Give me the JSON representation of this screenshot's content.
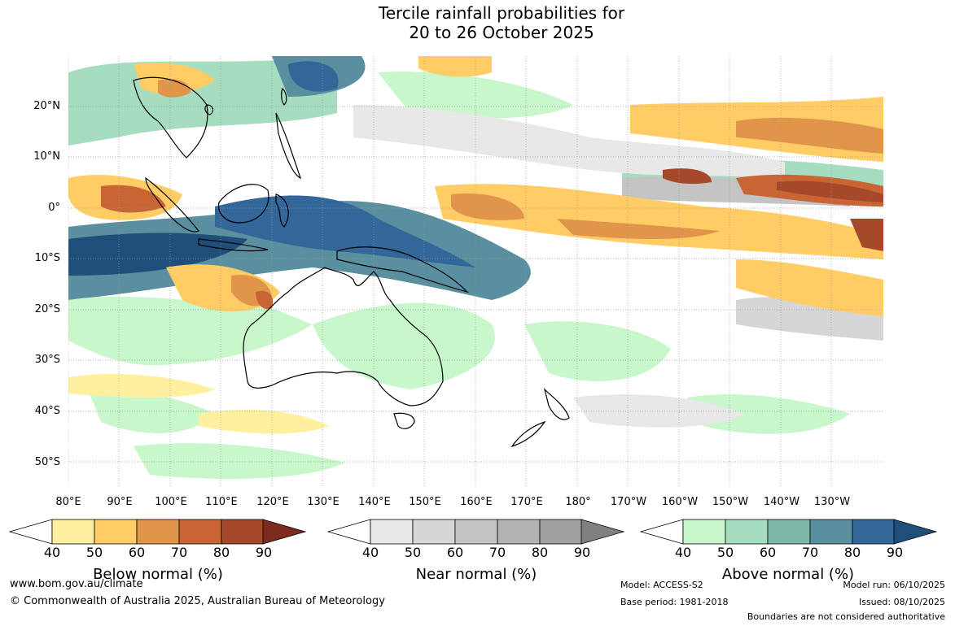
{
  "title": {
    "line1": "Tercile rainfall probabilities for",
    "line2": "20 to 26 October 2025"
  },
  "lat_labels": [
    "20°N",
    "10°N",
    "0°",
    "10°S",
    "20°S",
    "30°S",
    "40°S",
    "50°S"
  ],
  "lon_labels": [
    "80°E",
    "90°E",
    "100°E",
    "110°E",
    "120°E",
    "130°E",
    "140°E",
    "150°E",
    "160°E",
    "170°E",
    "180°",
    "170°W",
    "160°W",
    "150°W",
    "140°W",
    "130°W"
  ],
  "colorbars": {
    "below": {
      "title": "Below normal (%)",
      "ticks": [
        "40",
        "50",
        "60",
        "70",
        "80",
        "90"
      ],
      "colors": [
        "#fff0a0",
        "#ffcc66",
        "#e0954a",
        "#c96535",
        "#a6482a",
        "#7b2c1e"
      ]
    },
    "near": {
      "title": "Near normal (%)",
      "ticks": [
        "40",
        "50",
        "60",
        "70",
        "80",
        "90"
      ],
      "colors": [
        "#e8e8e8",
        "#d6d6d6",
        "#c4c4c4",
        "#b2b2b2",
        "#a0a0a0",
        "#808080"
      ]
    },
    "above": {
      "title": "Above normal (%)",
      "ticks": [
        "40",
        "50",
        "60",
        "70",
        "80",
        "90"
      ],
      "colors": [
        "#c8f7cc",
        "#a6dcc0",
        "#7fb8a8",
        "#5a8fa0",
        "#336699",
        "#1f4e7a"
      ]
    }
  },
  "footer": {
    "url": "www.bom.gov.au/climate",
    "copyright": "© Commonwealth of Australia 2025, Australian Bureau of Meteorology",
    "model": "Model: ACCESS-S2",
    "base_period": "Base period: 1981-2018",
    "model_run": "Model run: 06/10/2025",
    "issued": "Issued: 08/10/2025",
    "disclaimer": "Boundaries are not considered authoritative"
  }
}
